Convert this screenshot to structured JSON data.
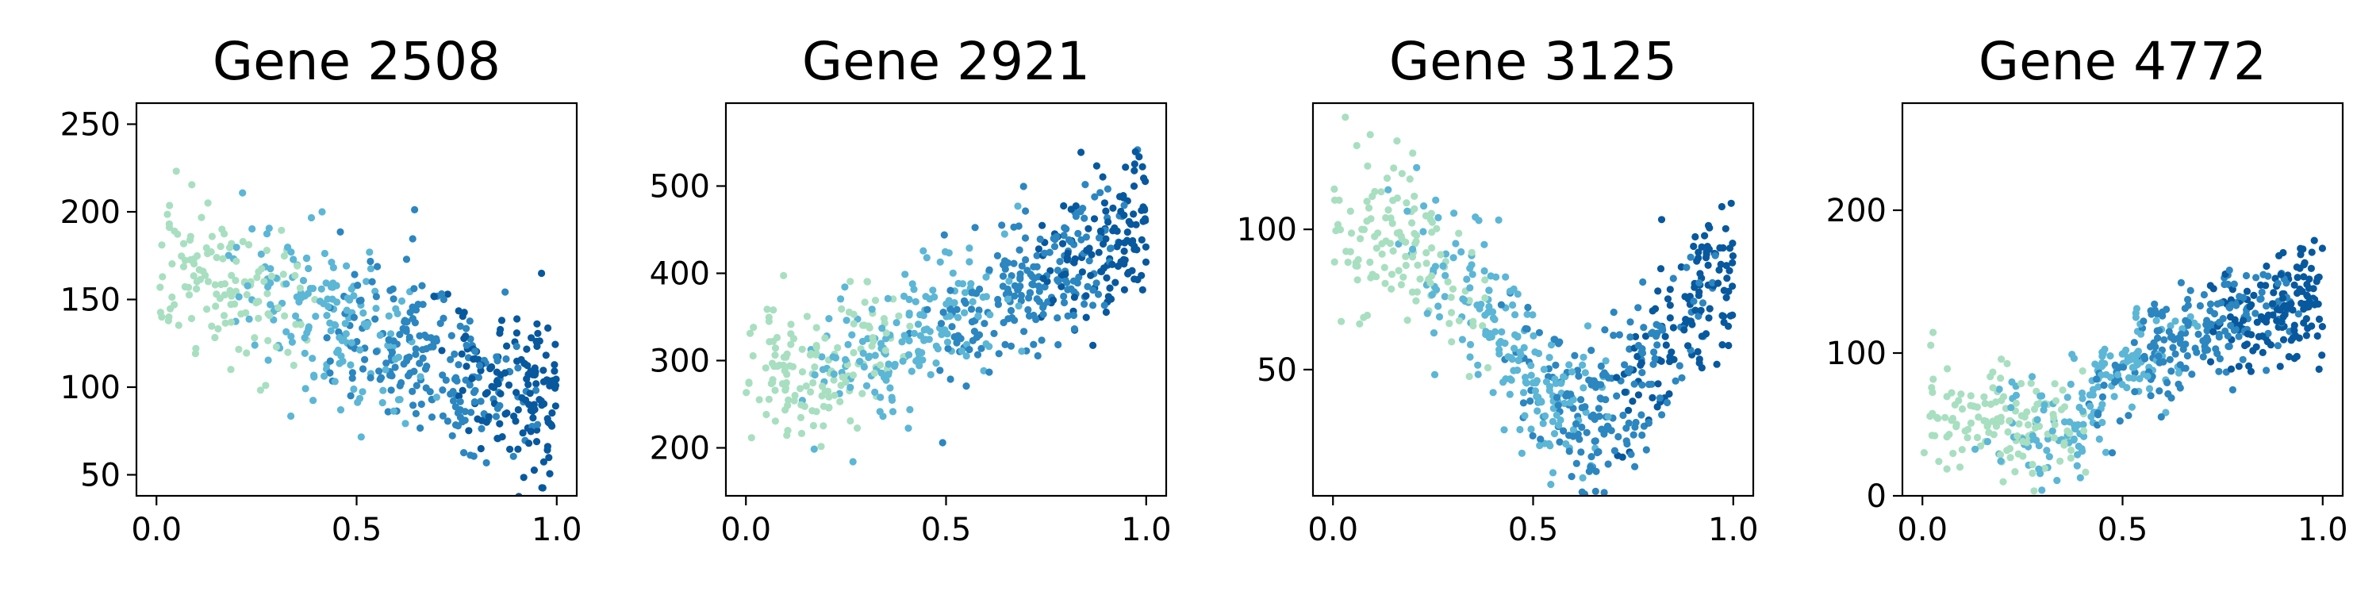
{
  "palette": [
    "#a8dfc1",
    "#5cb6d6",
    "#2c86c0",
    "#08589e"
  ],
  "chart_data": [
    {
      "type": "scatter",
      "title": "Gene 2508",
      "xlim": [
        -0.05,
        1.05
      ],
      "ylim": [
        38,
        262
      ],
      "xticks": [
        0,
        0.5,
        1
      ],
      "xtick_labels": [
        "0.0",
        "0.5",
        "1.0"
      ],
      "yticks": [
        50,
        100,
        150,
        200,
        250
      ],
      "ytick_labels": [
        "50",
        "100",
        "150",
        "200",
        "250"
      ],
      "trend": [
        [
          0.0,
          175
        ],
        [
          0.2,
          160
        ],
        [
          0.4,
          140
        ],
        [
          0.6,
          125
        ],
        [
          0.8,
          105
        ],
        [
          1.0,
          88
        ]
      ],
      "noise": 24,
      "seed": 2508,
      "count": 620,
      "grid": false,
      "legend": "none"
    },
    {
      "type": "scatter",
      "title": "Gene 2921",
      "xlim": [
        -0.05,
        1.05
      ],
      "ylim": [
        145,
        595
      ],
      "xticks": [
        0,
        0.5,
        1
      ],
      "xtick_labels": [
        "0.0",
        "0.5",
        "1.0"
      ],
      "yticks": [
        200,
        300,
        400,
        500
      ],
      "ytick_labels": [
        "200",
        "300",
        "400",
        "500"
      ],
      "trend": [
        [
          0.0,
          275
        ],
        [
          0.2,
          295
        ],
        [
          0.4,
          320
        ],
        [
          0.6,
          360
        ],
        [
          0.8,
          410
        ],
        [
          1.0,
          440
        ]
      ],
      "noise": 42,
      "seed": 2921,
      "count": 620,
      "grid": false,
      "legend": "none"
    },
    {
      "type": "scatter",
      "title": "Gene 3125",
      "xlim": [
        -0.05,
        1.05
      ],
      "ylim": [
        5,
        145
      ],
      "xticks": [
        0,
        0.5,
        1
      ],
      "xtick_labels": [
        "0.0",
        "0.5",
        "1.0"
      ],
      "yticks": [
        50,
        100
      ],
      "ytick_labels": [
        "50",
        "100"
      ],
      "trend": [
        [
          0.0,
          100
        ],
        [
          0.2,
          95
        ],
        [
          0.4,
          70
        ],
        [
          0.5,
          45
        ],
        [
          0.6,
          32
        ],
        [
          0.7,
          35
        ],
        [
          0.8,
          55
        ],
        [
          0.9,
          75
        ],
        [
          1.0,
          85
        ]
      ],
      "noise": 14,
      "seed": 3125,
      "count": 620,
      "grid": false,
      "legend": "none"
    },
    {
      "type": "scatter",
      "title": "Gene 4772",
      "xlim": [
        -0.05,
        1.05
      ],
      "ylim": [
        0,
        275
      ],
      "xticks": [
        0,
        0.5,
        1
      ],
      "xtick_labels": [
        "0.0",
        "0.5",
        "1.0"
      ],
      "yticks": [
        0,
        100,
        200
      ],
      "ytick_labels": [
        "0",
        "100",
        "200"
      ],
      "trend": [
        [
          0.0,
          65
        ],
        [
          0.2,
          50
        ],
        [
          0.3,
          42
        ],
        [
          0.4,
          55
        ],
        [
          0.5,
          85
        ],
        [
          0.6,
          105
        ],
        [
          0.8,
          125
        ],
        [
          1.0,
          140
        ]
      ],
      "noise": 20,
      "seed": 4772,
      "count": 620,
      "grid": false,
      "legend": "none"
    }
  ]
}
